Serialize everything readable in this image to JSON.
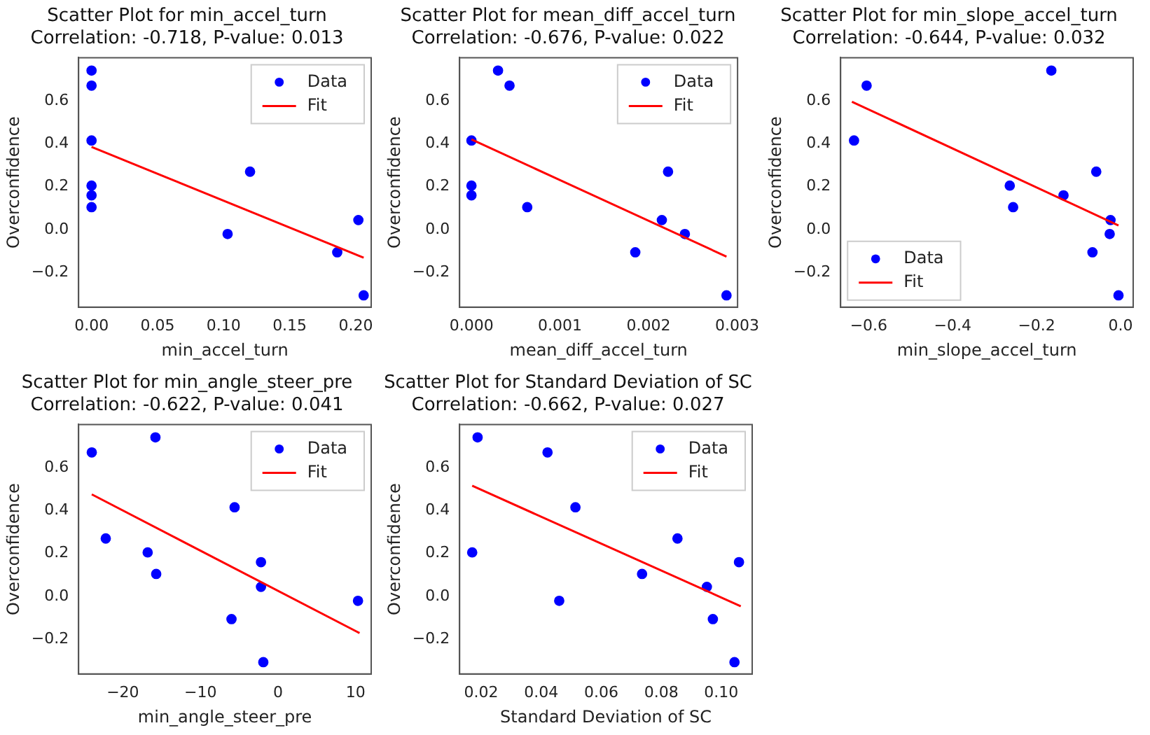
{
  "chart_data": [
    {
      "type": "scatter",
      "title": "Scatter Plot for min_accel_turn",
      "subtitle": "Correlation: -0.718, P-value: 0.013",
      "xlabel": "min_accel_turn",
      "ylabel": "Overconfidence",
      "legend": "top right",
      "grid": false,
      "xlim": [
        -0.0098,
        0.2117
      ],
      "xticks": [
        {
          "value": 0,
          "label": "0.00"
        },
        {
          "value": 0.05,
          "label": "0.05"
        },
        {
          "value": 0.1,
          "label": "0.10"
        },
        {
          "value": 0.15,
          "label": "0.15"
        },
        {
          "value": 0.2,
          "label": "0.20"
        }
      ],
      "ylim": [
        -0.36,
        0.8
      ],
      "yticks": [
        {
          "value": -0.2,
          "label": "−0.2"
        },
        {
          "value": 0,
          "label": "0.0"
        },
        {
          "value": 0.2,
          "label": "0.2"
        },
        {
          "value": 0.4,
          "label": "0.4"
        },
        {
          "value": 0.6,
          "label": "0.6"
        }
      ],
      "series": [
        {
          "name": "Data",
          "type": "scatter",
          "color": "#0000ff",
          "marker": "circle",
          "x": [
            0,
            0,
            0,
            0,
            0,
            0,
            0.12,
            0.103,
            0.186,
            0.202,
            0.206
          ],
          "values": [
            0.74,
            0.67,
            0.415,
            0.205,
            0.16,
            0.105,
            0.27,
            -0.02,
            -0.105,
            0.045,
            -0.305
          ]
        },
        {
          "name": "Fit",
          "type": "line",
          "color": "#ff0000",
          "marker": "none",
          "line_style": "solid",
          "x": [
            0,
            0.206
          ],
          "values": [
            0.385,
            -0.13
          ]
        }
      ]
    },
    {
      "type": "scatter",
      "title": "Scatter Plot for mean_diff_accel_turn",
      "subtitle": "Correlation: -0.676, P-value: 0.022",
      "xlabel": "mean_diff_accel_turn",
      "ylabel": "Overconfidence",
      "legend": "top right",
      "grid": false,
      "xlim": [
        -0.000134,
        0.003005
      ],
      "xticks": [
        {
          "value": 0,
          "label": "0.000"
        },
        {
          "value": 0.001,
          "label": "0.001"
        },
        {
          "value": 0.002,
          "label": "0.002"
        },
        {
          "value": 0.003,
          "label": "0.003"
        }
      ],
      "ylim": [
        -0.36,
        0.8
      ],
      "yticks": [
        {
          "value": -0.2,
          "label": "−0.2"
        },
        {
          "value": 0,
          "label": "0.0"
        },
        {
          "value": 0.2,
          "label": "0.2"
        },
        {
          "value": 0.4,
          "label": "0.4"
        },
        {
          "value": 0.6,
          "label": "0.6"
        }
      ],
      "series": [
        {
          "name": "Data",
          "type": "scatter",
          "color": "#0000ff",
          "marker": "circle",
          "x": [
            0.0003,
            0.00043,
            0,
            0,
            0,
            0.00063,
            0.00185,
            0.00215,
            0.00222,
            0.00241,
            0.00288
          ],
          "values": [
            0.74,
            0.67,
            0.415,
            0.205,
            0.16,
            0.105,
            -0.105,
            0.045,
            0.27,
            -0.02,
            -0.305
          ]
        },
        {
          "name": "Fit",
          "type": "line",
          "color": "#ff0000",
          "marker": "none",
          "line_style": "solid",
          "x": [
            0,
            0.00288
          ],
          "values": [
            0.42,
            -0.125
          ]
        }
      ]
    },
    {
      "type": "scatter",
      "title": "Scatter Plot for min_slope_accel_turn",
      "subtitle": "Correlation: -0.644, P-value: 0.032",
      "xlabel": "min_slope_accel_turn",
      "ylabel": "Overconfidence",
      "legend": "bottom left",
      "grid": false,
      "xlim": [
        -0.667,
        0.03
      ],
      "xticks": [
        {
          "value": -0.6,
          "label": "−0.6"
        },
        {
          "value": -0.4,
          "label": "−0.4"
        },
        {
          "value": -0.2,
          "label": "−0.2"
        },
        {
          "value": 0,
          "label": "0.0"
        }
      ],
      "ylim": [
        -0.36,
        0.8
      ],
      "yticks": [
        {
          "value": -0.2,
          "label": "−0.2"
        },
        {
          "value": 0,
          "label": "0.0"
        },
        {
          "value": 0.2,
          "label": "0.2"
        },
        {
          "value": 0.4,
          "label": "0.4"
        },
        {
          "value": 0.6,
          "label": "0.6"
        }
      ],
      "series": [
        {
          "name": "Data",
          "type": "scatter",
          "color": "#0000ff",
          "marker": "circle",
          "x": [
            -0.635,
            -0.605,
            -0.165,
            -0.264,
            -0.256,
            -0.136,
            -0.058,
            -0.024,
            -0.026,
            -0.067,
            -0.005
          ],
          "values": [
            0.415,
            0.67,
            0.74,
            0.205,
            0.105,
            0.16,
            0.27,
            0.045,
            -0.02,
            -0.105,
            -0.305
          ]
        },
        {
          "name": "Fit",
          "type": "line",
          "color": "#ff0000",
          "marker": "none",
          "line_style": "solid",
          "x": [
            -0.64,
            -0.005
          ],
          "values": [
            0.595,
            0.02
          ]
        }
      ]
    },
    {
      "type": "scatter",
      "title": "Scatter Plot for min_angle_steer_pre",
      "subtitle": "Correlation: -0.622, P-value: 0.041",
      "xlabel": "min_angle_steer_pre",
      "ylabel": "Overconfidence",
      "legend": "top right",
      "grid": false,
      "xlim": [
        -25.7,
        12
      ],
      "xticks": [
        {
          "value": -20,
          "label": "−20"
        },
        {
          "value": -10,
          "label": "−10"
        },
        0,
        10
      ],
      "ylim": [
        -0.36,
        0.8
      ],
      "yticks": [
        {
          "value": -0.2,
          "label": "−0.2"
        },
        {
          "value": 0,
          "label": "0.0"
        },
        {
          "value": 0.2,
          "label": "0.2"
        },
        {
          "value": 0.4,
          "label": "0.4"
        },
        {
          "value": 0.6,
          "label": "0.6"
        }
      ],
      "series": [
        {
          "name": "Data",
          "type": "scatter",
          "color": "#0000ff",
          "marker": "circle",
          "x": [
            -24,
            -15.8,
            -22.2,
            -16.8,
            -15.7,
            -5.6,
            -2.2,
            -2.2,
            -6,
            -1.9,
            10.3
          ],
          "values": [
            0.67,
            0.74,
            0.27,
            0.205,
            0.105,
            0.415,
            0.16,
            0.045,
            -0.105,
            -0.305,
            -0.02
          ]
        },
        {
          "name": "Fit",
          "type": "line",
          "color": "#ff0000",
          "marker": "none",
          "line_style": "solid",
          "x": [
            -24,
            10.5
          ],
          "values": [
            0.475,
            -0.17
          ]
        }
      ]
    },
    {
      "type": "scatter",
      "title": "Scatter Plot for Standard Deviation of SC",
      "subtitle": "Correlation: -0.662, P-value: 0.027",
      "xlabel": "Standard Deviation of SC",
      "ylabel": "Overconfidence",
      "legend": "top right",
      "grid": false,
      "xlim": [
        0.0128,
        0.1103
      ],
      "xticks": [
        {
          "value": 0.02,
          "label": "0.02"
        },
        {
          "value": 0.04,
          "label": "0.04"
        },
        {
          "value": 0.06,
          "label": "0.06"
        },
        {
          "value": 0.08,
          "label": "0.08"
        },
        {
          "value": 0.1,
          "label": "0.10"
        }
      ],
      "ylim": [
        -0.36,
        0.8
      ],
      "yticks": [
        {
          "value": -0.2,
          "label": "−0.2"
        },
        {
          "value": 0,
          "label": "0.0"
        },
        {
          "value": 0.2,
          "label": "0.2"
        },
        {
          "value": 0.4,
          "label": "0.4"
        },
        {
          "value": 0.6,
          "label": "0.6"
        }
      ],
      "series": [
        {
          "name": "Data",
          "type": "scatter",
          "color": "#0000ff",
          "marker": "circle",
          "x": [
            0.0188,
            0.017,
            0.0421,
            0.046,
            0.0514,
            0.0736,
            0.0854,
            0.0952,
            0.1059,
            0.0972,
            0.1044
          ],
          "values": [
            0.74,
            0.205,
            0.67,
            -0.02,
            0.415,
            0.105,
            0.27,
            0.045,
            0.16,
            -0.105,
            -0.305
          ]
        },
        {
          "name": "Fit",
          "type": "line",
          "color": "#ff0000",
          "marker": "none",
          "line_style": "solid",
          "x": [
            0.017,
            0.1065
          ],
          "values": [
            0.515,
            -0.045
          ]
        }
      ]
    }
  ]
}
